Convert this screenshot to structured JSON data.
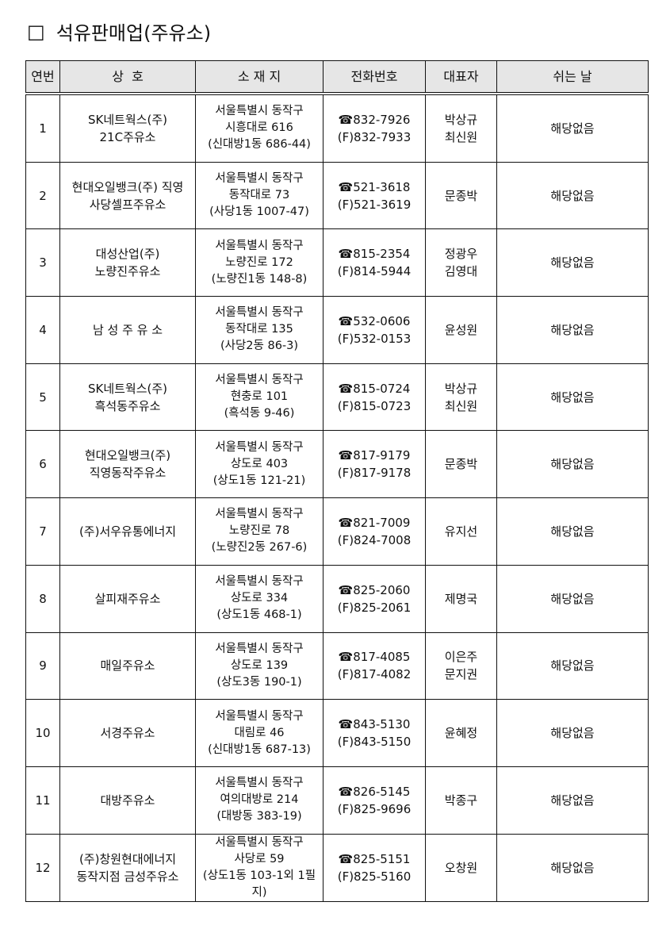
{
  "title": "석유판매업(주유소)",
  "title_marker": "□",
  "headers": [
    "연번",
    "상  호",
    "소 재 지",
    "전화번호",
    "대표자",
    "쉬는 날"
  ],
  "rows": [
    {
      "no": "1",
      "name": [
        "SK네트웍스(주)",
        "21C주유소"
      ],
      "addr": [
        "서울특별시 동작구",
        "시흥대로 616",
        "(신대방1동 686-44)"
      ],
      "tel": "☎832-7926",
      "fax": "(F)832-7933",
      "rep": [
        "박상규",
        "최신원"
      ],
      "off": "해당없음"
    },
    {
      "no": "2",
      "name": [
        "현대오일뱅크(주) 직영",
        "사당셀프주유소"
      ],
      "addr": [
        "서울특별시 동작구",
        "동작대로 73",
        "(사당1동 1007-47)"
      ],
      "tel": "☎521-3618",
      "fax": "(F)521-3619",
      "rep": [
        "문종박"
      ],
      "off": "해당없음"
    },
    {
      "no": "3",
      "name": [
        "대성산업(주)",
        "노량진주유소"
      ],
      "addr": [
        "서울특별시 동작구",
        "노량진로 172",
        "(노량진1동 148-8)"
      ],
      "tel": "☎815-2354",
      "fax": "(F)814-5944",
      "rep": [
        "정광우",
        "김영대"
      ],
      "off": "해당없음"
    },
    {
      "no": "4",
      "name": [
        "남 성 주 유 소"
      ],
      "addr": [
        "서울특별시 동작구",
        "동작대로 135",
        "(사당2동 86-3)"
      ],
      "tel": "☎532-0606",
      "fax": "(F)532-0153",
      "rep": [
        "윤성원"
      ],
      "off": "해당없음"
    },
    {
      "no": "5",
      "name": [
        "SK네트웍스(주)",
        "흑석동주유소"
      ],
      "addr": [
        "서울특별시 동작구",
        "현충로 101",
        "(흑석동 9-46)"
      ],
      "tel": "☎815-0724",
      "fax": "(F)815-0723",
      "rep": [
        "박상규",
        "최신원"
      ],
      "off": "해당없음"
    },
    {
      "no": "6",
      "name": [
        "현대오일뱅크(주)",
        "직영동작주유소"
      ],
      "addr": [
        "서울특별시 동작구",
        "상도로 403",
        "(상도1동 121-21)"
      ],
      "tel": "☎817-9179",
      "fax": "(F)817-9178",
      "rep": [
        "문종박"
      ],
      "off": "해당없음"
    },
    {
      "no": "7",
      "name": [
        "(주)서우유통에너지"
      ],
      "addr": [
        "서울특별시 동작구",
        "노량진로 78",
        "(노량진2동 267-6)"
      ],
      "tel": "☎821-7009",
      "fax": "(F)824-7008",
      "rep": [
        "유지선"
      ],
      "off": "해당없음"
    },
    {
      "no": "8",
      "name": [
        "살피재주유소"
      ],
      "addr": [
        "서울특별시 동작구",
        "상도로 334",
        "(상도1동 468-1)"
      ],
      "tel": "☎825-2060",
      "fax": "(F)825-2061",
      "rep": [
        "제명국"
      ],
      "off": "해당없음"
    },
    {
      "no": "9",
      "name": [
        "매일주유소"
      ],
      "addr": [
        "서울특별시 동작구",
        "상도로 139",
        "(상도3동 190-1)"
      ],
      "tel": "☎817-4085",
      "fax": "(F)817-4082",
      "rep": [
        "이은주",
        "문지권"
      ],
      "off": "해당없음"
    },
    {
      "no": "10",
      "name": [
        "서경주유소"
      ],
      "addr": [
        "서울특별시 동작구",
        "대림로 46",
        "(신대방1동 687-13)"
      ],
      "tel": "☎843-5130",
      "fax": "(F)843-5150",
      "rep": [
        "윤혜정"
      ],
      "off": "해당없음"
    },
    {
      "no": "11",
      "name": [
        "대방주유소"
      ],
      "addr": [
        "서울특별시 동작구",
        "여의대방로 214",
        "(대방동 383-19)"
      ],
      "tel": "☎826-5145",
      "fax": "(F)825-9696",
      "rep": [
        "박종구"
      ],
      "off": "해당없음"
    },
    {
      "no": "12",
      "name": [
        "(주)창원현대에너지",
        "동작지점 금성주유소"
      ],
      "addr": [
        "서울특별시 동작구",
        "사당로 59",
        "(상도1동 103-1외 1필지)"
      ],
      "tel": "☎825-5151",
      "fax": "(F)825-5160",
      "rep": [
        "오창원"
      ],
      "off": "해당없음"
    }
  ]
}
